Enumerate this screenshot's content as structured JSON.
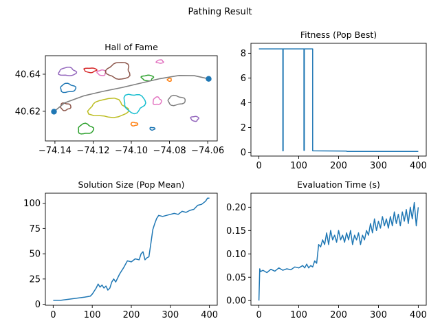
{
  "figure": {
    "suptitle": "Pathing Result"
  },
  "chart_data": [
    {
      "id": "hall_of_fame",
      "type": "scatter",
      "title": "Hall of Fame",
      "xlabel": "",
      "ylabel": "",
      "xlim": [
        -74.145,
        -74.055
      ],
      "ylim": [
        40.604,
        40.65
      ],
      "xticks": [
        -74.14,
        -74.12,
        -74.1,
        -74.08,
        -74.06
      ],
      "xtick_labels": [
        "−74.14",
        "−74.12",
        "−74.10",
        "−74.08",
        "−74.06"
      ],
      "yticks": [
        40.62,
        40.64
      ],
      "ytick_labels": [
        "40.62",
        "40.64"
      ],
      "grid": false,
      "points": [
        {
          "x": -74.1405,
          "y": 40.6198,
          "color": "#1f77b4"
        },
        {
          "x": -74.0595,
          "y": 40.6375,
          "color": "#1f77b4"
        }
      ],
      "path": {
        "color": "#7f7f7f",
        "x": [
          -74.1405,
          -74.135,
          -74.125,
          -74.115,
          -74.105,
          -74.095,
          -74.085,
          -74.075,
          -74.067,
          -74.0595
        ],
        "y": [
          40.6198,
          40.6245,
          40.6283,
          40.6307,
          40.6328,
          40.6352,
          40.6376,
          40.6393,
          40.6392,
          40.6375
        ]
      },
      "regions": [
        {
          "color": "#9467bd",
          "cx": -74.1335,
          "cy": 40.6413,
          "rx": 0.0045,
          "ry": 0.0022
        },
        {
          "color": "#1f77b4",
          "cx": -74.1333,
          "cy": 40.6325,
          "rx": 0.004,
          "ry": 0.0023
        },
        {
          "color": "#8c564b",
          "cx": -74.1345,
          "cy": 40.6225,
          "rx": 0.0027,
          "ry": 0.0019
        },
        {
          "color": "#d62728",
          "cx": -74.1215,
          "cy": 40.6422,
          "rx": 0.0032,
          "ry": 0.0012
        },
        {
          "color": "#e377c2",
          "cx": -74.1155,
          "cy": 40.6408,
          "rx": 0.0022,
          "ry": 0.0015
        },
        {
          "color": "#8c564b",
          "cx": -74.1065,
          "cy": 40.6418,
          "rx": 0.006,
          "ry": 0.0045
        },
        {
          "color": "#bcbd22",
          "cx": -74.112,
          "cy": 40.6215,
          "rx": 0.01,
          "ry": 0.005
        },
        {
          "color": "#2ca02c",
          "cx": -74.124,
          "cy": 40.6104,
          "rx": 0.004,
          "ry": 0.0027
        },
        {
          "color": "#ff7f0e",
          "cx": -74.0985,
          "cy": 40.6131,
          "rx": 0.0018,
          "ry": 0.0009
        },
        {
          "color": "#17becf",
          "cx": -74.0985,
          "cy": 40.6245,
          "rx": 0.0055,
          "ry": 0.005
        },
        {
          "color": "#2ca02c",
          "cx": -74.0915,
          "cy": 40.638,
          "rx": 0.003,
          "ry": 0.0015
        },
        {
          "color": "#ff7f0e",
          "cx": -74.08,
          "cy": 40.637,
          "rx": 0.001,
          "ry": 0.0008
        },
        {
          "color": "#e377c2",
          "cx": -74.085,
          "cy": 40.6468,
          "rx": 0.0018,
          "ry": 0.0009
        },
        {
          "color": "#e377c2",
          "cx": -74.0865,
          "cy": 40.6255,
          "rx": 0.0022,
          "ry": 0.002
        },
        {
          "color": "#7f7f7f",
          "cx": -74.0765,
          "cy": 40.6258,
          "rx": 0.0045,
          "ry": 0.0025
        },
        {
          "color": "#1f77b4",
          "cx": -74.089,
          "cy": 40.6106,
          "rx": 0.0013,
          "ry": 0.0007
        },
        {
          "color": "#9467bd",
          "cx": -74.0668,
          "cy": 40.616,
          "rx": 0.002,
          "ry": 0.0013
        }
      ]
    },
    {
      "id": "fitness",
      "type": "line",
      "title": "Fitness (Pop Best)",
      "xlabel": "",
      "ylabel": "",
      "xlim": [
        -20,
        420
      ],
      "ylim": [
        -0.3,
        8.8
      ],
      "xticks": [
        0,
        100,
        200,
        300,
        400
      ],
      "xtick_labels": [
        "0",
        "100",
        "200",
        "300",
        "400"
      ],
      "yticks": [
        0,
        2,
        4,
        6,
        8
      ],
      "ytick_labels": [
        "0",
        "2",
        "4",
        "6",
        "8"
      ],
      "grid": false,
      "series": [
        {
          "color": "#1f77b4",
          "x": [
            0,
            60,
            60,
            61,
            61,
            113,
            113,
            114,
            114,
            135,
            135,
            220,
            221,
            400
          ],
          "y": [
            8.35,
            8.35,
            0.12,
            0.12,
            8.35,
            8.35,
            0.16,
            0.16,
            8.35,
            8.35,
            0.12,
            0.1,
            0.07,
            0.07
          ]
        }
      ]
    },
    {
      "id": "solution_size",
      "type": "line",
      "title": "Solution Size (Pop Mean)",
      "xlabel": "",
      "ylabel": "",
      "xlim": [
        -20,
        420
      ],
      "ylim": [
        -1,
        110
      ],
      "xticks": [
        0,
        100,
        200,
        300,
        400
      ],
      "xtick_labels": [
        "0",
        "100",
        "200",
        "300",
        "400"
      ],
      "yticks": [
        0,
        25,
        50,
        75,
        100
      ],
      "ytick_labels": [
        "0",
        "25",
        "50",
        "75",
        "100"
      ],
      "grid": false,
      "series": [
        {
          "color": "#1f77b4",
          "x": [
            0,
            20,
            40,
            60,
            80,
            95,
            100,
            110,
            115,
            120,
            125,
            130,
            135,
            140,
            145,
            150,
            155,
            160,
            170,
            180,
            190,
            200,
            210,
            220,
            225,
            230,
            235,
            240,
            245,
            250,
            255,
            260,
            265,
            270,
            280,
            290,
            300,
            310,
            320,
            330,
            340,
            350,
            360,
            370,
            380,
            390,
            395,
            400
          ],
          "y": [
            4,
            4,
            5,
            6,
            7,
            8,
            10,
            16,
            20,
            17,
            19,
            16,
            18,
            14,
            16,
            22,
            25,
            22,
            30,
            36,
            43,
            42,
            45,
            44,
            50,
            52,
            44,
            46,
            47,
            60,
            74,
            80,
            85,
            88,
            87,
            88,
            89,
            90,
            89,
            92,
            91,
            93,
            94,
            98,
            99,
            102,
            105,
            105
          ]
        }
      ]
    },
    {
      "id": "evaluation_time",
      "type": "line",
      "title": "Evaluation Time (s)",
      "xlabel": "",
      "ylabel": "",
      "xlim": [
        -20,
        420
      ],
      "ylim": [
        -0.01,
        0.23
      ],
      "xticks": [
        0,
        100,
        200,
        300,
        400
      ],
      "xtick_labels": [
        "0",
        "100",
        "200",
        "300",
        "400"
      ],
      "yticks": [
        0.0,
        0.05,
        0.1,
        0.15,
        0.2
      ],
      "ytick_labels": [
        "0.00",
        "0.05",
        "0.10",
        "0.15",
        "0.20"
      ],
      "grid": false,
      "series": [
        {
          "color": "#1f77b4",
          "x": [
            0,
            2,
            4,
            10,
            20,
            30,
            40,
            50,
            60,
            70,
            80,
            90,
            100,
            110,
            115,
            120,
            125,
            130,
            135,
            140,
            145,
            150,
            155,
            160,
            165,
            170,
            175,
            180,
            185,
            190,
            195,
            200,
            205,
            210,
            215,
            220,
            225,
            230,
            235,
            240,
            245,
            250,
            255,
            260,
            265,
            270,
            275,
            280,
            285,
            290,
            295,
            300,
            305,
            310,
            315,
            320,
            325,
            330,
            335,
            340,
            345,
            350,
            355,
            360,
            365,
            370,
            375,
            380,
            385,
            390,
            395,
            400
          ],
          "y": [
            0.0,
            0.068,
            0.062,
            0.065,
            0.06,
            0.067,
            0.063,
            0.07,
            0.065,
            0.068,
            0.066,
            0.072,
            0.07,
            0.075,
            0.07,
            0.078,
            0.07,
            0.075,
            0.072,
            0.085,
            0.08,
            0.12,
            0.115,
            0.13,
            0.12,
            0.145,
            0.12,
            0.15,
            0.13,
            0.14,
            0.125,
            0.15,
            0.13,
            0.14,
            0.125,
            0.145,
            0.13,
            0.15,
            0.12,
            0.14,
            0.13,
            0.145,
            0.12,
            0.14,
            0.13,
            0.15,
            0.14,
            0.165,
            0.145,
            0.175,
            0.15,
            0.17,
            0.155,
            0.18,
            0.16,
            0.175,
            0.155,
            0.18,
            0.16,
            0.19,
            0.165,
            0.185,
            0.16,
            0.19,
            0.17,
            0.195,
            0.165,
            0.2,
            0.175,
            0.21,
            0.16,
            0.2
          ]
        }
      ]
    }
  ]
}
